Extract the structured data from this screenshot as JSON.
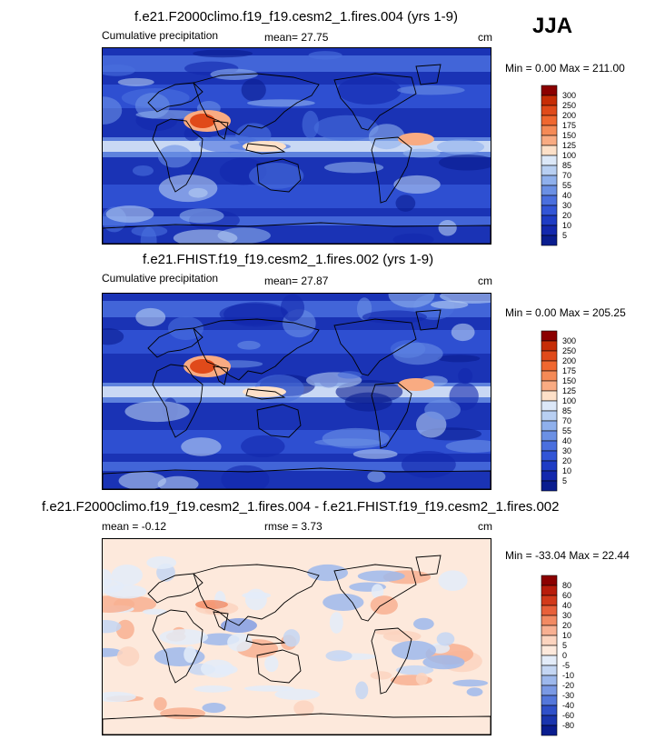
{
  "season": "JJA",
  "panels": [
    {
      "title": "f.e21.F2000climo.f19_f19.cesm2_1.fires.004 (yrs 1-9)",
      "left_label": "Cumulative precipitation",
      "stat1": "mean=  27.75",
      "units": "cm",
      "minmax": "Min =   0.00 Max = 211.00",
      "levels": [
        "300",
        "250",
        "200",
        "175",
        "150",
        "125",
        "100",
        "85",
        "70",
        "55",
        "40",
        "30",
        "20",
        "10",
        "5"
      ],
      "colors": [
        "#8b0000",
        "#c62d06",
        "#e04a1a",
        "#f0672f",
        "#f58a56",
        "#f9ab82",
        "#fde0c8",
        "#dce8f8",
        "#b8cff2",
        "#8fb0ec",
        "#6b90e4",
        "#4a6fde",
        "#3255d6",
        "#1e3cc4",
        "#1328ad",
        "#0a1d8f"
      ],
      "kind": "precip"
    },
    {
      "title": "f.e21.FHIST.f19_f19.cesm2_1.fires.002 (yrs 1-9)",
      "left_label": "Cumulative precipitation",
      "stat1": "mean=  27.87",
      "units": "cm",
      "minmax": "Min =   0.00 Max = 205.25",
      "levels": [
        "300",
        "250",
        "200",
        "175",
        "150",
        "125",
        "100",
        "85",
        "70",
        "55",
        "40",
        "30",
        "20",
        "10",
        "5"
      ],
      "colors": [
        "#8b0000",
        "#c62d06",
        "#e04a1a",
        "#f0672f",
        "#f58a56",
        "#f9ab82",
        "#fde0c8",
        "#dce8f8",
        "#b8cff2",
        "#8fb0ec",
        "#6b90e4",
        "#4a6fde",
        "#3255d6",
        "#1e3cc4",
        "#1328ad",
        "#0a1d8f"
      ],
      "kind": "precip"
    },
    {
      "title": "f.e21.F2000climo.f19_f19.cesm2_1.fires.004 - f.e21.FHIST.f19_f19.cesm2_1.fires.002",
      "left_label": "mean =  -0.12",
      "stat1": "rmse =   3.73",
      "units": "cm",
      "minmax": "Min = -33.04 Max =  22.44",
      "levels": [
        "80",
        "60",
        "40",
        "30",
        "20",
        "10",
        "5",
        "0",
        "-5",
        "-10",
        "-20",
        "-30",
        "-40",
        "-60",
        "-80"
      ],
      "colors": [
        "#8b0000",
        "#b81c0b",
        "#d2391a",
        "#e8603a",
        "#f28a63",
        "#f8b092",
        "#fcd4bf",
        "#fde9dc",
        "#e3ecf9",
        "#c4d6f3",
        "#9db8ec",
        "#7a99e4",
        "#5477db",
        "#2f50c9",
        "#1a35ae",
        "#0a1d8f"
      ],
      "kind": "diff"
    }
  ]
}
